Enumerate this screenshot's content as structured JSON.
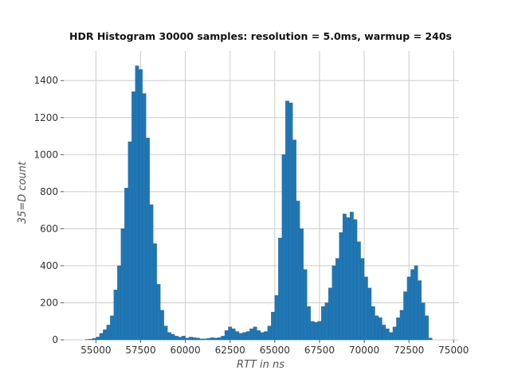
{
  "chart_data": {
    "type": "bar",
    "title": "HDR Histogram 30000 samples: resolution = 5.0ms, warmup = 240s",
    "xlabel": "RTT in ns",
    "ylabel": "35=D count",
    "xlim": [
      53200,
      75300
    ],
    "ylim": [
      0,
      1560
    ],
    "grid": true,
    "x_ticks": [
      55000,
      57500,
      60000,
      62500,
      65000,
      67500,
      70000,
      72500,
      75000
    ],
    "y_ticks": [
      0,
      200,
      400,
      600,
      800,
      1000,
      1200,
      1400
    ],
    "bin_start": 54400,
    "bin_width": 200,
    "values": [
      2,
      4,
      8,
      15,
      35,
      55,
      80,
      130,
      270,
      400,
      600,
      820,
      1070,
      1340,
      1480,
      1460,
      1330,
      1090,
      730,
      520,
      300,
      160,
      75,
      40,
      30,
      20,
      15,
      20,
      10,
      15,
      12,
      10,
      5,
      5,
      8,
      12,
      10,
      12,
      20,
      50,
      70,
      60,
      45,
      35,
      40,
      45,
      60,
      70,
      50,
      40,
      45,
      75,
      150,
      240,
      550,
      1000,
      1290,
      1280,
      1080,
      750,
      600,
      380,
      180,
      100,
      95,
      100,
      180,
      200,
      280,
      400,
      440,
      580,
      680,
      660,
      690,
      650,
      530,
      440,
      340,
      280,
      180,
      130,
      120,
      80,
      60,
      40,
      70,
      120,
      160,
      260,
      340,
      380,
      400,
      320,
      200,
      130,
      10
    ]
  }
}
